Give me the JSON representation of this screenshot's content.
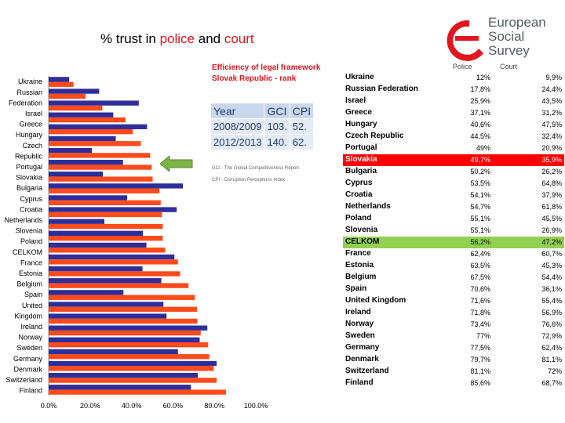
{
  "title": {
    "prefix": "% trust in ",
    "police": "police",
    "mid": " and ",
    "court": "court"
  },
  "logo": {
    "line1": "European",
    "line2": "Social",
    "line3": "Survey"
  },
  "efficiency_panel": {
    "title_line1": "Efficiency of legal framework",
    "title_line2": "Slovak Republic - rank",
    "headers": [
      "Year",
      "GCI",
      "CPI"
    ],
    "rows": [
      [
        "2008/2009",
        "103.",
        "52."
      ],
      [
        "2012/2013",
        "140.",
        "62."
      ]
    ],
    "note_gci": "GCI - The Global Competitiveness Report",
    "note_cpi": "CPI - Corruption Perceptions Index"
  },
  "table": {
    "headers": {
      "police": "Police",
      "court": "Court"
    },
    "rows": [
      {
        "name": "Ukraine",
        "police": "12%",
        "court": "9,9%"
      },
      {
        "name": "Russian Federation",
        "police": "17,8%",
        "court": "24,4%"
      },
      {
        "name": "Israel",
        "police": "25,9%",
        "court": "43,5%"
      },
      {
        "name": "Greece",
        "police": "37,1%",
        "court": "31,2%"
      },
      {
        "name": "Hungary",
        "police": "40,6%",
        "court": "47,5%"
      },
      {
        "name": "Czech Republic",
        "police": "44,5%",
        "court": "32,4%"
      },
      {
        "name": "Portugal",
        "police": "49%",
        "court": "20,9%"
      },
      {
        "name": "Slovakia",
        "police": "49,7%",
        "court": "35,9%",
        "highlight": "red"
      },
      {
        "name": "Bulgaria",
        "police": "50,2%",
        "court": "26,2%"
      },
      {
        "name": "Cyprus",
        "police": "53,5%",
        "court": "64,8%"
      },
      {
        "name": "Croatia",
        "police": "54,1%",
        "court": "37,9%"
      },
      {
        "name": "Netherlands",
        "police": "54,7%",
        "court": "61,8%"
      },
      {
        "name": "Poland",
        "police": "55,1%",
        "court": "45,5%"
      },
      {
        "name": "Slovenia",
        "police": "55,1%",
        "court": "26,9%"
      },
      {
        "name": "CELKOM",
        "police": "56,2%",
        "court": "47,2%",
        "highlight": "green"
      },
      {
        "name": "France",
        "police": "62,4%",
        "court": "60,7%"
      },
      {
        "name": "Estonia",
        "police": "63,5%",
        "court": "45,3%"
      },
      {
        "name": "Belgium",
        "police": "67,5%",
        "court": "54,4%"
      },
      {
        "name": "Spain",
        "police": "70,6%",
        "court": "36,1%"
      },
      {
        "name": "United Kingdom",
        "police": "71,6%",
        "court": "55,4%"
      },
      {
        "name": "Ireland",
        "police": "71,8%",
        "court": "56,9%"
      },
      {
        "name": "Norway",
        "police": "73,4%",
        "court": "76,6%"
      },
      {
        "name": "Sweden",
        "police": "77%",
        "court": "72,9%"
      },
      {
        "name": "Germany",
        "police": "77,5%",
        "court": "62,4%"
      },
      {
        "name": "Denmark",
        "police": "79,7%",
        "court": "81,1%"
      },
      {
        "name": "Switzerland",
        "police": "81,1%",
        "court": "72%"
      },
      {
        "name": "Finland",
        "police": "85,6%",
        "court": "68,7%"
      }
    ]
  },
  "chart_data": {
    "type": "bar",
    "orientation": "horizontal",
    "categories": [
      "Ukraine",
      "Russian Federation",
      "Israel",
      "Greece",
      "Hungary",
      "Czech Republic",
      "Portugal",
      "Slovakia",
      "Bulgaria",
      "Cyprus",
      "Croatia",
      "Netherlands",
      "Slovenia",
      "Poland",
      "CELKOM",
      "France",
      "Estonia",
      "Belgium",
      "Spain",
      "United Kingdom",
      "Ireland",
      "Norway",
      "Sweden",
      "Germany",
      "Denmark",
      "Switzerland",
      "Finland"
    ],
    "category_labels": [
      "Ukraine",
      "Russian",
      "Federation",
      "Israel",
      "Greece",
      "Hungary",
      "Czech",
      "Republic",
      "Portugal",
      "Slovakia",
      "Bulgaria",
      "Cyprus",
      "Croatia",
      "Netherlands",
      "Slovenia",
      "Poland",
      "CELKOM",
      "France",
      "Estonia",
      "Belgium",
      "Spain",
      "United",
      "Kingdom",
      "Ireland",
      "Norway",
      "Sweden",
      "Germany",
      "Denmark",
      "Switzerland",
      "Finland"
    ],
    "series": [
      {
        "color": "#2e2e9a",
        "values": [
          9.9,
          24.4,
          43.5,
          31.2,
          47.5,
          32.4,
          20.9,
          35.9,
          26.2,
          64.8,
          37.9,
          61.8,
          26.9,
          45.5,
          47.2,
          60.7,
          45.3,
          54.4,
          36.1,
          55.4,
          56.9,
          76.6,
          72.9,
          62.4,
          81.1,
          72,
          68.7
        ]
      },
      {
        "color": "#ff4a1c",
        "values": [
          12,
          17.8,
          25.9,
          37.1,
          40.6,
          44.5,
          49,
          49.7,
          50.2,
          53.5,
          54.1,
          54.7,
          55.1,
          55.1,
          56.2,
          62.4,
          63.5,
          67.5,
          70.6,
          71.6,
          71.8,
          73.4,
          77,
          77.5,
          79.7,
          81.1,
          85.6
        ]
      }
    ],
    "xlim": [
      0,
      100
    ],
    "x_ticks": [
      "0.0%",
      "20.0%",
      "40.0%",
      "60.0%",
      "80.0%",
      "100.0%"
    ]
  }
}
